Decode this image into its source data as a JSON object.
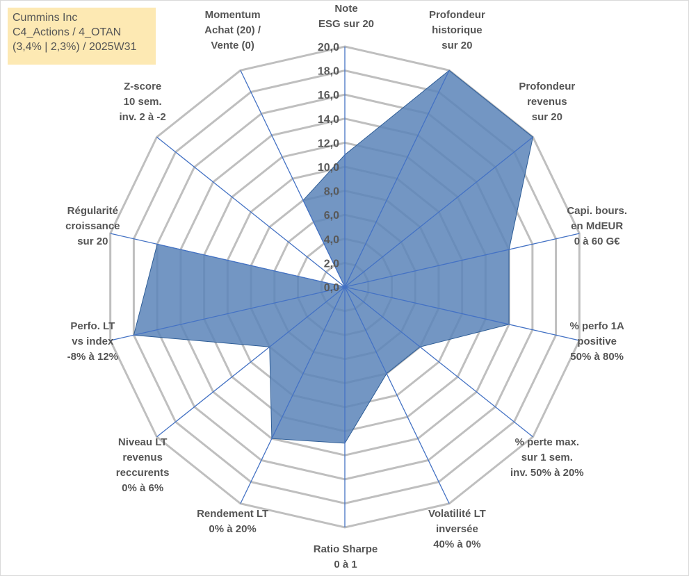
{
  "info_box": {
    "line1": "Cummins Inc",
    "line2": "C4_Actions / 4_OTAN",
    "line3": "(3,4% | 2,3%) / 2025W31"
  },
  "colors": {
    "area_fill": "#5b84b8",
    "area_stroke": "#2e5d96",
    "spokes": "#4472c4",
    "gridlines": "#bfbfbf",
    "info_box_bg": "#fde9b3"
  },
  "chart_data": {
    "type": "radar",
    "rmin": 0,
    "rmax": 20,
    "tick_step": 2,
    "tick_labels": [
      "0,0",
      "2,0",
      "4,0",
      "6,0",
      "8,0",
      "10,0",
      "12,0",
      "14,0",
      "16,0",
      "18,0",
      "20,0"
    ],
    "axes": [
      {
        "label": [
          "Note",
          "ESG sur 20"
        ],
        "value": 11.0
      },
      {
        "label": [
          "Profondeur",
          "historique",
          "sur 20"
        ],
        "value": 20.0
      },
      {
        "label": [
          "Profondeur",
          "revenus",
          "sur 20"
        ],
        "value": 20.0
      },
      {
        "label": [
          "Capi. bours.",
          "en MdEUR",
          "0 à 60 G€"
        ],
        "value": 14.0
      },
      {
        "label": [
          "% perfo 1A",
          "positive",
          "50% à 80%"
        ],
        "value": 14.0
      },
      {
        "label": [
          "% perte max.",
          "sur 1 sem.",
          "inv. 50% à 20%"
        ],
        "value": 8.0
      },
      {
        "label": [
          "Volatilité LT",
          "inversée",
          "40% à 0%"
        ],
        "value": 8.0
      },
      {
        "label": [
          "Ratio Sharpe",
          "0 à 1"
        ],
        "value": 13.0
      },
      {
        "label": [
          "Rendement LT",
          "0% à 20%"
        ],
        "value": 14.0
      },
      {
        "label": [
          "Niveau LT",
          "revenus",
          "reccurents",
          "0% à 6%"
        ],
        "value": 8.0
      },
      {
        "label": [
          "Perfo. LT",
          "vs index",
          "-8% à 12%"
        ],
        "value": 18.0
      },
      {
        "label": [
          "Régularité",
          "croissance",
          "sur 20"
        ],
        "value": 16.0
      },
      {
        "label": [
          "Z-score",
          "10 sem.",
          "inv. 2 à -2"
        ],
        "value": 0.0
      },
      {
        "label": [
          "Momentum",
          "Achat (20) /",
          "Vente (0)"
        ],
        "value": 8.0
      }
    ]
  }
}
